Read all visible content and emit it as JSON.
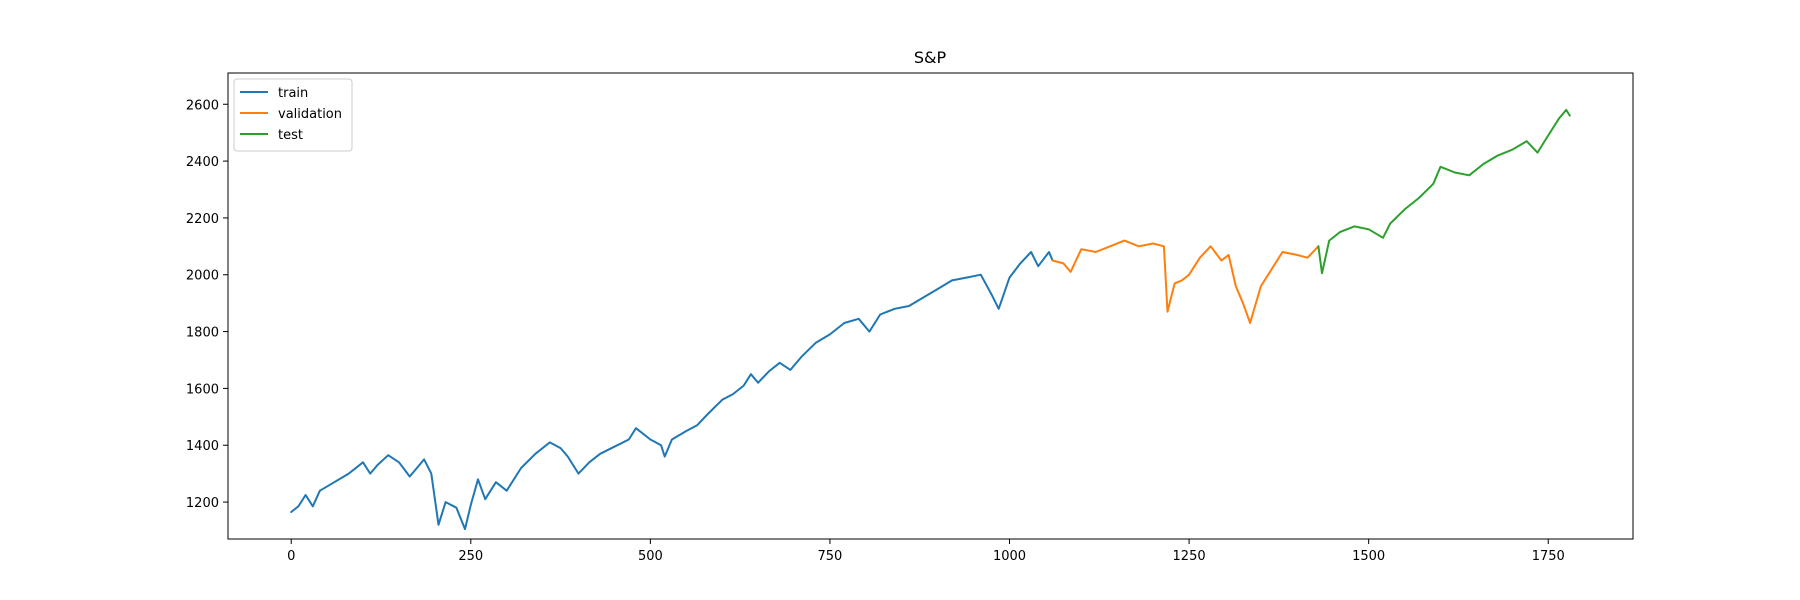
{
  "chart_data": {
    "type": "line",
    "title": "S&P",
    "xlabel": "",
    "ylabel": "",
    "xlim": [
      -88,
      1868
    ],
    "ylim": [
      1070,
      2710
    ],
    "xticks": [
      0,
      250,
      500,
      750,
      1000,
      1250,
      1500,
      1750
    ],
    "yticks": [
      1200,
      1400,
      1600,
      1800,
      2000,
      2200,
      2400,
      2600
    ],
    "grid": false,
    "legend_position": "top-left",
    "series": [
      {
        "name": "train",
        "color": "#1f77b4",
        "points": [
          [
            0,
            1165
          ],
          [
            10,
            1185
          ],
          [
            20,
            1225
          ],
          [
            30,
            1185
          ],
          [
            40,
            1240
          ],
          [
            60,
            1270
          ],
          [
            80,
            1300
          ],
          [
            100,
            1340
          ],
          [
            110,
            1300
          ],
          [
            120,
            1330
          ],
          [
            135,
            1365
          ],
          [
            150,
            1340
          ],
          [
            165,
            1290
          ],
          [
            175,
            1320
          ],
          [
            185,
            1350
          ],
          [
            195,
            1300
          ],
          [
            205,
            1120
          ],
          [
            215,
            1200
          ],
          [
            230,
            1180
          ],
          [
            242,
            1105
          ],
          [
            250,
            1190
          ],
          [
            260,
            1280
          ],
          [
            270,
            1210
          ],
          [
            285,
            1270
          ],
          [
            300,
            1240
          ],
          [
            320,
            1320
          ],
          [
            340,
            1370
          ],
          [
            360,
            1410
          ],
          [
            375,
            1390
          ],
          [
            385,
            1360
          ],
          [
            400,
            1300
          ],
          [
            415,
            1340
          ],
          [
            430,
            1370
          ],
          [
            450,
            1395
          ],
          [
            470,
            1420
          ],
          [
            480,
            1460
          ],
          [
            500,
            1420
          ],
          [
            515,
            1400
          ],
          [
            520,
            1360
          ],
          [
            530,
            1420
          ],
          [
            550,
            1450
          ],
          [
            565,
            1470
          ],
          [
            580,
            1510
          ],
          [
            600,
            1560
          ],
          [
            615,
            1580
          ],
          [
            630,
            1610
          ],
          [
            640,
            1650
          ],
          [
            650,
            1620
          ],
          [
            665,
            1660
          ],
          [
            680,
            1690
          ],
          [
            695,
            1665
          ],
          [
            710,
            1710
          ],
          [
            730,
            1760
          ],
          [
            750,
            1790
          ],
          [
            770,
            1830
          ],
          [
            790,
            1845
          ],
          [
            805,
            1800
          ],
          [
            820,
            1860
          ],
          [
            840,
            1880
          ],
          [
            860,
            1890
          ],
          [
            880,
            1920
          ],
          [
            900,
            1950
          ],
          [
            920,
            1980
          ],
          [
            940,
            1990
          ],
          [
            960,
            2000
          ],
          [
            975,
            1930
          ],
          [
            985,
            1880
          ],
          [
            1000,
            1990
          ],
          [
            1015,
            2040
          ],
          [
            1030,
            2080
          ],
          [
            1040,
            2030
          ],
          [
            1055,
            2080
          ],
          [
            1060,
            2050
          ]
        ]
      },
      {
        "name": "validation",
        "color": "#ff7f0e",
        "points": [
          [
            1060,
            2050
          ],
          [
            1075,
            2040
          ],
          [
            1085,
            2010
          ],
          [
            1100,
            2090
          ],
          [
            1120,
            2080
          ],
          [
            1140,
            2100
          ],
          [
            1160,
            2120
          ],
          [
            1180,
            2100
          ],
          [
            1200,
            2110
          ],
          [
            1215,
            2100
          ],
          [
            1220,
            1870
          ],
          [
            1230,
            1970
          ],
          [
            1240,
            1980
          ],
          [
            1250,
            2000
          ],
          [
            1265,
            2060
          ],
          [
            1280,
            2100
          ],
          [
            1295,
            2050
          ],
          [
            1305,
            2070
          ],
          [
            1315,
            1960
          ],
          [
            1325,
            1900
          ],
          [
            1335,
            1830
          ],
          [
            1350,
            1960
          ],
          [
            1365,
            2020
          ],
          [
            1380,
            2080
          ],
          [
            1400,
            2070
          ],
          [
            1415,
            2060
          ],
          [
            1430,
            2100
          ]
        ]
      },
      {
        "name": "test",
        "color": "#2ca02c",
        "points": [
          [
            1430,
            2100
          ],
          [
            1435,
            2005
          ],
          [
            1445,
            2120
          ],
          [
            1460,
            2150
          ],
          [
            1480,
            2170
          ],
          [
            1500,
            2160
          ],
          [
            1520,
            2130
          ],
          [
            1530,
            2180
          ],
          [
            1550,
            2230
          ],
          [
            1570,
            2270
          ],
          [
            1590,
            2320
          ],
          [
            1600,
            2380
          ],
          [
            1620,
            2360
          ],
          [
            1640,
            2350
          ],
          [
            1660,
            2390
          ],
          [
            1680,
            2420
          ],
          [
            1700,
            2440
          ],
          [
            1720,
            2470
          ],
          [
            1735,
            2430
          ],
          [
            1750,
            2490
          ],
          [
            1765,
            2550
          ],
          [
            1775,
            2580
          ],
          [
            1780,
            2560
          ]
        ]
      }
    ]
  }
}
